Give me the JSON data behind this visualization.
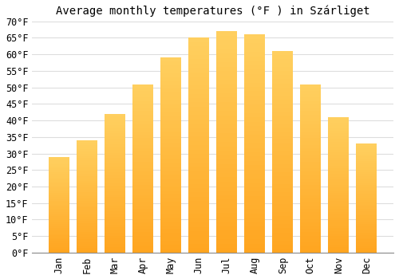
{
  "title": "Average monthly temperatures (°F ) in Szárliget",
  "months": [
    "Jan",
    "Feb",
    "Mar",
    "Apr",
    "May",
    "Jun",
    "Jul",
    "Aug",
    "Sep",
    "Oct",
    "Nov",
    "Dec"
  ],
  "values": [
    29,
    34,
    42,
    51,
    59,
    65,
    67,
    66,
    61,
    51,
    41,
    33
  ],
  "bar_color_bottom": "#FFA520",
  "bar_color_top": "#FFD060",
  "background_color": "#FFFFFF",
  "grid_color": "#DDDDDD",
  "ylim": [
    0,
    70
  ],
  "yticks": [
    0,
    5,
    10,
    15,
    20,
    25,
    30,
    35,
    40,
    45,
    50,
    55,
    60,
    65,
    70
  ],
  "title_fontsize": 10,
  "tick_fontsize": 8.5,
  "bar_width": 0.75
}
